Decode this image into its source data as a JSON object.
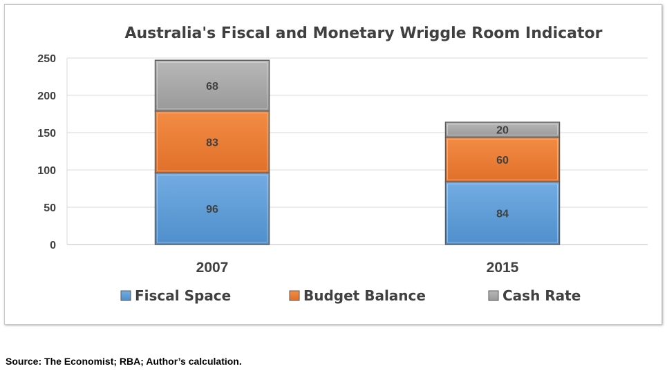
{
  "chart_data": {
    "type": "bar",
    "stacked": true,
    "title": "Australia's Fiscal and Monetary Wriggle Room Indicator",
    "xlabel": "",
    "ylabel": "",
    "categories": [
      "2007",
      "2015"
    ],
    "series": [
      {
        "name": "Fiscal Space",
        "values": [
          96,
          84
        ],
        "color": "#5b9bd5"
      },
      {
        "name": "Budget Balance",
        "values": [
          83,
          60
        ],
        "color": "#ed7d31"
      },
      {
        "name": "Cash Rate",
        "values": [
          68,
          20
        ],
        "color": "#a5a5a5"
      }
    ],
    "ylim": [
      0,
      250
    ],
    "yticks": [
      "0",
      "50",
      "100",
      "150",
      "200",
      "250"
    ],
    "grid": true,
    "legend_position": "bottom"
  },
  "source": "Source: The Economist; RBA; Author’s calculation."
}
